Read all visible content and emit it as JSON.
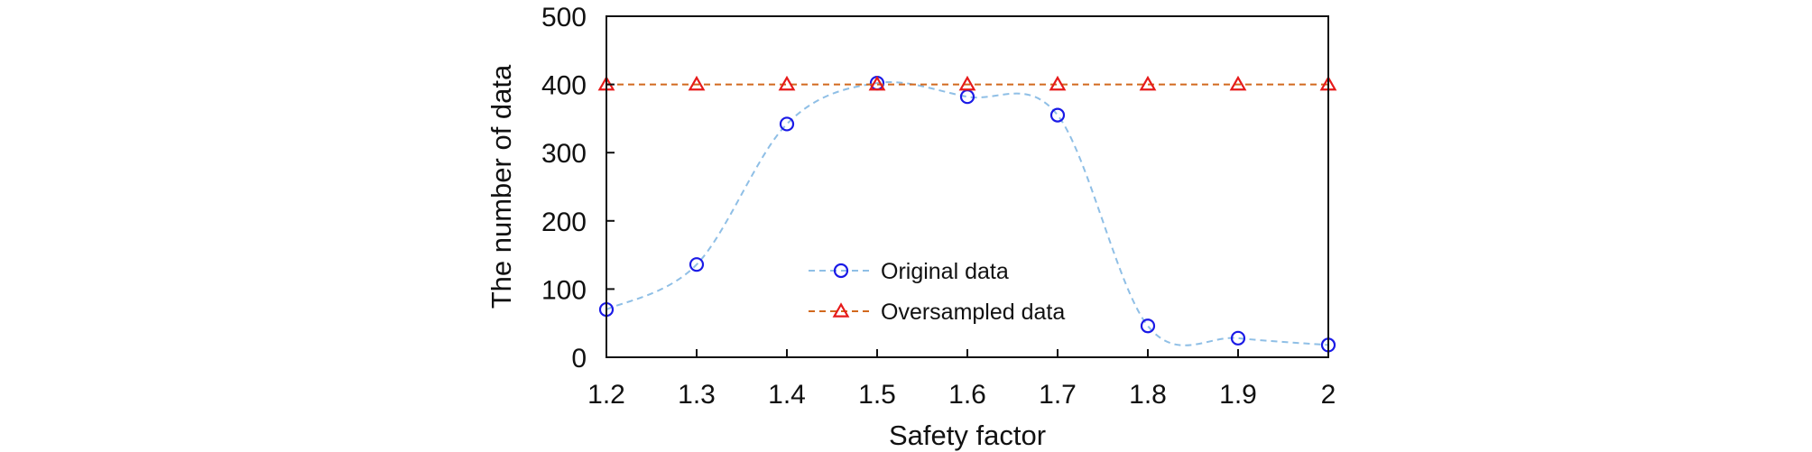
{
  "chart_data": {
    "type": "line",
    "x": [
      1.2,
      1.3,
      1.4,
      1.5,
      1.6,
      1.7,
      1.8,
      1.9,
      2.0
    ],
    "x_tick_labels": [
      "1.2",
      "1.3",
      "1.4",
      "1.5",
      "1.6",
      "1.7",
      "1.8",
      "1.9",
      "2"
    ],
    "y_ticks": [
      0,
      100,
      200,
      300,
      400,
      500
    ],
    "y_tick_labels": [
      "0",
      "100",
      "200",
      "300",
      "400",
      "500"
    ],
    "xlim": [
      1.2,
      2.0
    ],
    "ylim": [
      0,
      500
    ],
    "xlabel": "Safety factor",
    "ylabel": "The number of data",
    "grid": false,
    "legend_position": "center",
    "series": [
      {
        "name": "Original data",
        "values": [
          70,
          136,
          342,
          402,
          382,
          355,
          46,
          28,
          18
        ],
        "color": "#1a1ae6",
        "line_color": "#8fbfe6",
        "marker": "circle",
        "line_style": "dashed",
        "smooth": true
      },
      {
        "name": "Oversampled data",
        "values": [
          400,
          400,
          400,
          400,
          400,
          400,
          400,
          400,
          400
        ],
        "color": "#e61a1a",
        "line_color": "#d2691e",
        "marker": "triangle",
        "line_style": "dashed",
        "smooth": false
      }
    ]
  }
}
